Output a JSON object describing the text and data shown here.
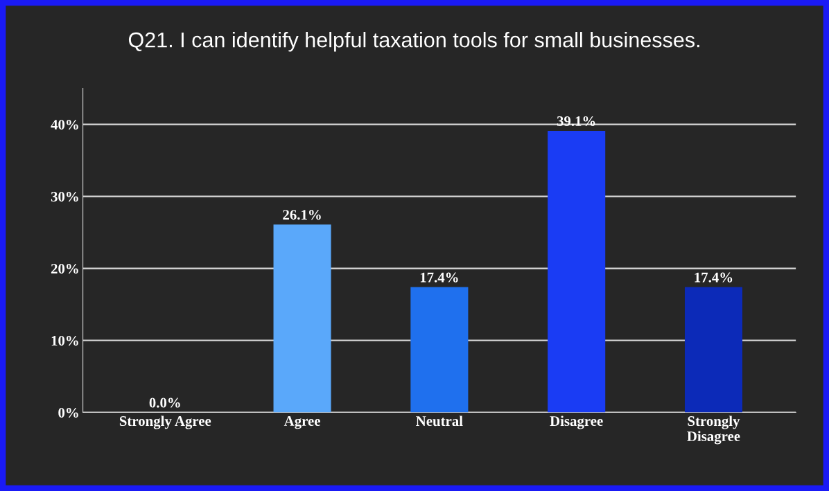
{
  "chart_data": {
    "type": "bar",
    "title": "Q21. I can identify helpful taxation tools for small businesses.",
    "categories": [
      "Strongly Agree",
      "Agree",
      "Neutral",
      "Disagree",
      "Strongly\nDisagree"
    ],
    "values": [
      0.0,
      26.1,
      17.4,
      39.1,
      17.4
    ],
    "colors": [
      "#8faad8",
      "#5aa8fa",
      "#1f70ee",
      "#1a3cf4",
      "#0c2ab8"
    ],
    "value_labels": [
      "0.0%",
      "26.1%",
      "17.4%",
      "39.1%",
      "17.4%"
    ],
    "ylim": [
      0,
      45
    ],
    "yticks": [
      {
        "value": 0,
        "label": "0%"
      },
      {
        "value": 10,
        "label": "10%"
      },
      {
        "value": 20,
        "label": "20%"
      },
      {
        "value": 30,
        "label": "30%"
      },
      {
        "value": 40,
        "label": "40%"
      }
    ],
    "grid": "y",
    "legend": false
  }
}
